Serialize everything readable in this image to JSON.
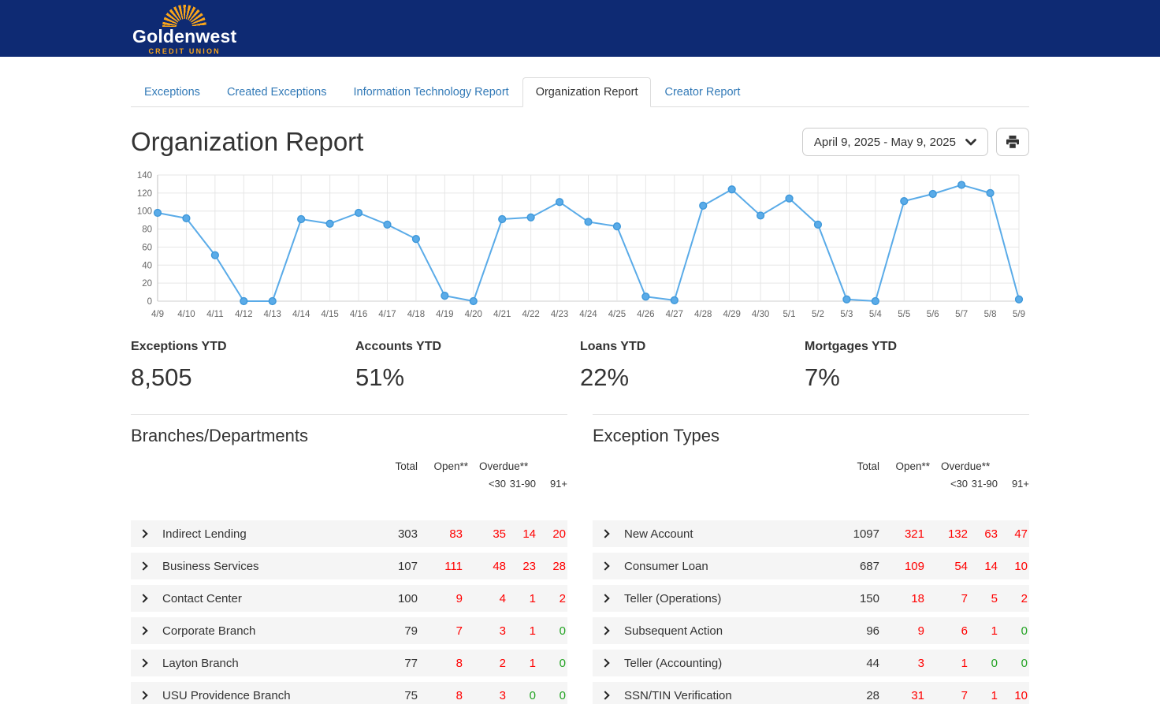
{
  "brand": {
    "name": "Goldenwest",
    "tagline": "CREDIT UNION"
  },
  "tabs": [
    "Exceptions",
    "Created Exceptions",
    "Information Technology Report",
    "Organization Report",
    "Creator Report"
  ],
  "active_tab": "Organization Report",
  "page": {
    "title": "Organization Report",
    "date_range": "April 9, 2025 - May 9, 2025"
  },
  "chart_data": {
    "type": "line",
    "title": "",
    "xlabel": "",
    "ylabel": "",
    "x": [
      "4/9",
      "4/10",
      "4/11",
      "4/12",
      "4/13",
      "4/14",
      "4/15",
      "4/16",
      "4/17",
      "4/18",
      "4/19",
      "4/20",
      "4/21",
      "4/22",
      "4/23",
      "4/24",
      "4/25",
      "4/26",
      "4/27",
      "4/28",
      "4/29",
      "4/30",
      "5/1",
      "5/2",
      "5/3",
      "5/4",
      "5/5",
      "5/6",
      "5/7",
      "5/8",
      "5/9"
    ],
    "values": [
      98,
      92,
      51,
      0,
      0,
      91,
      86,
      98,
      85,
      69,
      6,
      0,
      91,
      93,
      110,
      88,
      83,
      5,
      1,
      106,
      124,
      95,
      114,
      85,
      2,
      0,
      111,
      119,
      129,
      120,
      2
    ],
    "ylim": [
      0,
      140
    ],
    "ytick_step": 20,
    "grid": true,
    "legend": false,
    "line_color": "#5aabe8"
  },
  "kpis": [
    {
      "label": "Exceptions YTD",
      "value": "8,505"
    },
    {
      "label": "Accounts YTD",
      "value": "51%"
    },
    {
      "label": "Loans YTD",
      "value": "22%"
    },
    {
      "label": "Mortgages YTD",
      "value": "7%"
    }
  ],
  "table_columns": {
    "total": "Total",
    "open": "Open**",
    "overdue": "Overdue**",
    "lt30": "<30",
    "b3190": "31-90",
    "gt91": "91+"
  },
  "tables": [
    {
      "title": "Branches/Departments",
      "rows": [
        {
          "name": "Indirect Lending",
          "total": "303",
          "open": "83",
          "lt30": "35",
          "b3190": "14",
          "gt91": "20"
        },
        {
          "name": "Business Services",
          "total": "107",
          "open": "111",
          "lt30": "48",
          "b3190": "23",
          "gt91": "28"
        },
        {
          "name": "Contact Center",
          "total": "100",
          "open": "9",
          "lt30": "4",
          "b3190": "1",
          "gt91": "2"
        },
        {
          "name": "Corporate Branch",
          "total": "79",
          "open": "7",
          "lt30": "3",
          "b3190": "1",
          "gt91": "0"
        },
        {
          "name": "Layton Branch",
          "total": "77",
          "open": "8",
          "lt30": "2",
          "b3190": "1",
          "gt91": "0"
        },
        {
          "name": "USU Providence Branch",
          "total": "75",
          "open": "8",
          "lt30": "3",
          "b3190": "0",
          "gt91": "0"
        }
      ]
    },
    {
      "title": "Exception Types",
      "rows": [
        {
          "name": "New Account",
          "total": "1097",
          "open": "321",
          "lt30": "132",
          "b3190": "63",
          "gt91": "47"
        },
        {
          "name": "Consumer Loan",
          "total": "687",
          "open": "109",
          "lt30": "54",
          "b3190": "14",
          "gt91": "10"
        },
        {
          "name": "Teller (Operations)",
          "total": "150",
          "open": "18",
          "lt30": "7",
          "b3190": "5",
          "gt91": "2"
        },
        {
          "name": "Subsequent Action",
          "total": "96",
          "open": "9",
          "lt30": "6",
          "b3190": "1",
          "gt91": "0"
        },
        {
          "name": "Teller (Accounting)",
          "total": "44",
          "open": "3",
          "lt30": "1",
          "b3190": "0",
          "gt91": "0"
        },
        {
          "name": "SSN/TIN Verification",
          "total": "28",
          "open": "31",
          "lt30": "7",
          "b3190": "1",
          "gt91": "10"
        }
      ]
    }
  ],
  "colors": {
    "navy": "#0e2a73",
    "gold": "#f9a51a",
    "tab_link": "#337ab7",
    "alert_red": "#ff0000",
    "ok_green": "#23a323",
    "line_blue": "#5aabe8"
  }
}
